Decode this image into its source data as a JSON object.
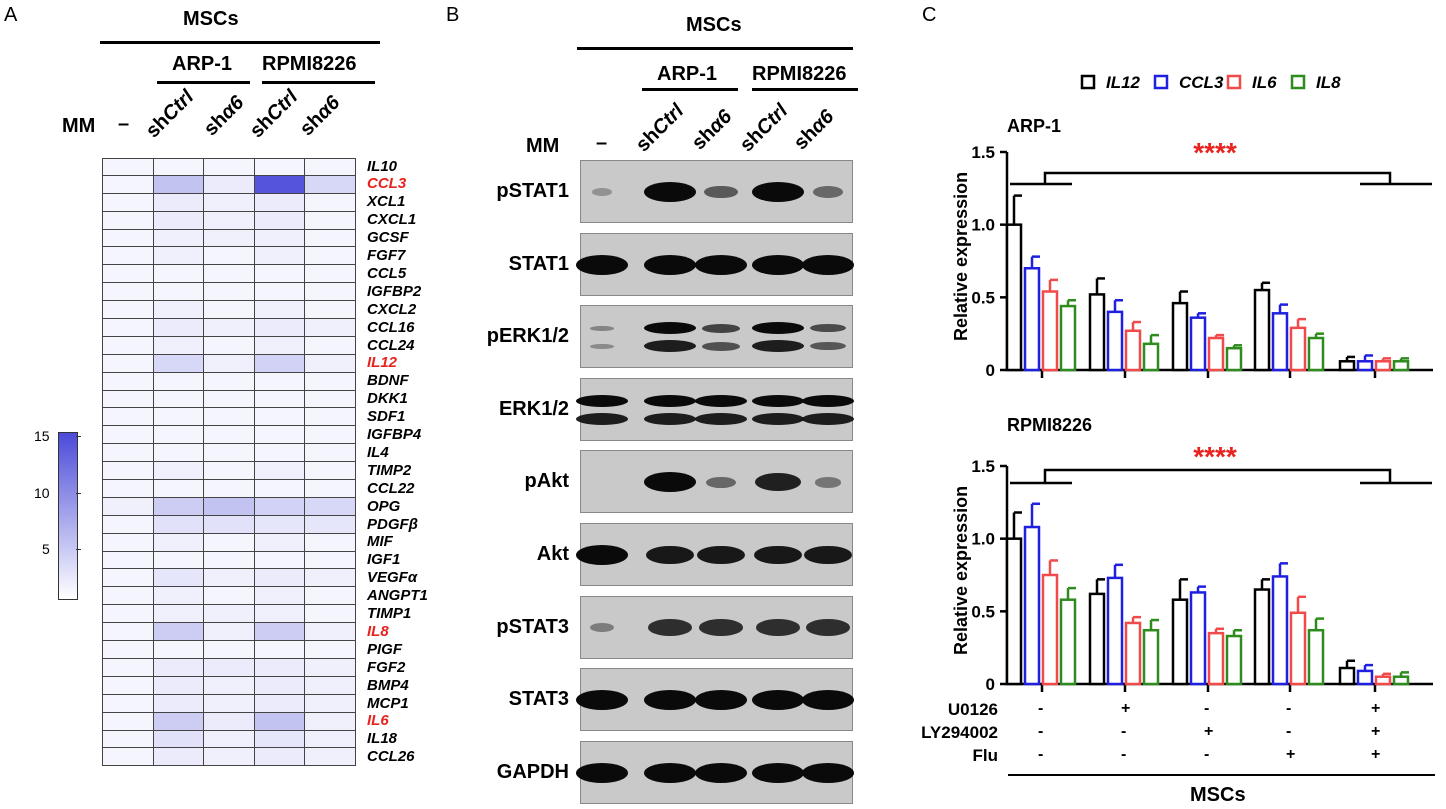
{
  "panelA": {
    "letter": "A",
    "header_msc": "MSCs",
    "header_arp": "ARP-1",
    "header_rpmi": "RPMI8226",
    "mm_label": "MM",
    "dash": "–",
    "col_labels": [
      {
        "prefix": "sh",
        "italic": "Ctrl"
      },
      {
        "prefix": "sh",
        "italic": "α6"
      },
      {
        "prefix": "sh",
        "italic": "Ctrl"
      },
      {
        "prefix": "sh",
        "italic": "α6"
      }
    ],
    "genes": [
      "IL10",
      "CCL3",
      "XCL1",
      "CXCL1",
      "GCSF",
      "FGF7",
      "CCL5",
      "IGFBP2",
      "CXCL2",
      "CCL16",
      "CCL24",
      "IL12",
      "BDNF",
      "DKK1",
      "SDF1",
      "IGFBP4",
      "IL4",
      "TIMP2",
      "CCL22",
      "OPG",
      "PDGFβ",
      "MIF",
      "IGF1",
      "VEGFα",
      "ANGPT1",
      "TIMP1",
      "IL8",
      "PIGF",
      "FGF2",
      "BMP4",
      "MCP1",
      "IL6",
      "IL18",
      "CCL26"
    ],
    "highlight_genes": [
      "CCL3",
      "IL12",
      "IL8",
      "IL6"
    ],
    "highlight_color": "#e8231f",
    "heat_values": [
      [
        1,
        1,
        1,
        1,
        1
      ],
      [
        1,
        6,
        2,
        17,
        4
      ],
      [
        1,
        2,
        1.5,
        2,
        1
      ],
      [
        1,
        2,
        1.5,
        2,
        1
      ],
      [
        1,
        1.5,
        1.5,
        1.5,
        1
      ],
      [
        1,
        1.5,
        1,
        1.5,
        1
      ],
      [
        1,
        1,
        1,
        1,
        1
      ],
      [
        1,
        1,
        1,
        1,
        1
      ],
      [
        1,
        1.5,
        1,
        1.5,
        1
      ],
      [
        1,
        2,
        1.5,
        2,
        1.5
      ],
      [
        1,
        1.5,
        1,
        1.5,
        1
      ],
      [
        1,
        4,
        1.5,
        4.5,
        1.5
      ],
      [
        1,
        1,
        1,
        1,
        1
      ],
      [
        1,
        1,
        1,
        1,
        1
      ],
      [
        1,
        1,
        1,
        1,
        1
      ],
      [
        1,
        1,
        1,
        1,
        1
      ],
      [
        1,
        1,
        1,
        1,
        1
      ],
      [
        1,
        1.5,
        1,
        1.5,
        1
      ],
      [
        1,
        1,
        1,
        1,
        1
      ],
      [
        1.5,
        5,
        6,
        4.5,
        4
      ],
      [
        1,
        3,
        3,
        2.5,
        2.5
      ],
      [
        1,
        1.5,
        1,
        1.5,
        1
      ],
      [
        1,
        1,
        1,
        1,
        1
      ],
      [
        1,
        2.5,
        1.5,
        2,
        1.5
      ],
      [
        1,
        1.5,
        1,
        1.5,
        1
      ],
      [
        1,
        1.5,
        1.5,
        1.5,
        1
      ],
      [
        1,
        5,
        1.5,
        5,
        1.5
      ],
      [
        1,
        1,
        1,
        1,
        1
      ],
      [
        1,
        2,
        2,
        2,
        1.5
      ],
      [
        1,
        2,
        1.5,
        2,
        1.5
      ],
      [
        1,
        2,
        1.5,
        2,
        1.5
      ],
      [
        1,
        5,
        2,
        6,
        1.5
      ],
      [
        1,
        3,
        1.5,
        2.5,
        1.5
      ],
      [
        1,
        2,
        1.5,
        2,
        1.5
      ]
    ],
    "colorbar": {
      "min": 0,
      "max": 18,
      "ticks": [
        15,
        10,
        5
      ],
      "color_low": "#ffffff",
      "color_high": "#4b4bd9"
    }
  },
  "panelB": {
    "letter": "B",
    "header_msc": "MSCs",
    "header_arp": "ARP-1",
    "header_rpmi": "RPMI8226",
    "mm_label": "MM",
    "dash": "–",
    "col_labels": [
      {
        "prefix": "sh",
        "italic": "Ctrl"
      },
      {
        "prefix": "sh",
        "italic": "α6"
      },
      {
        "prefix": "sh",
        "italic": "Ctrl"
      },
      {
        "prefix": "sh",
        "italic": "α6"
      }
    ],
    "blots": [
      {
        "label": "pSTAT1",
        "intensity": [
          0.05,
          1,
          0.45,
          1,
          0.35
        ],
        "double": false
      },
      {
        "label": "STAT1",
        "intensity": [
          1,
          1,
          1,
          1,
          1
        ],
        "double": false
      },
      {
        "label": "pERK1/2",
        "intensity": [
          0.15,
          1,
          0.6,
          1,
          0.55
        ],
        "double": true
      },
      {
        "label": "ERK1/2",
        "intensity": [
          1,
          1,
          1,
          1,
          1
        ],
        "double": true
      },
      {
        "label": "pAkt",
        "intensity": [
          0,
          1,
          0.35,
          0.85,
          0.25
        ],
        "double": false
      },
      {
        "label": "Akt",
        "intensity": [
          1,
          0.9,
          0.9,
          0.9,
          0.9
        ],
        "double": false
      },
      {
        "label": "pSTAT3",
        "intensity": [
          0.2,
          0.75,
          0.75,
          0.75,
          0.75
        ],
        "double": false
      },
      {
        "label": "STAT3",
        "intensity": [
          1,
          1,
          1,
          1,
          1
        ],
        "double": false
      },
      {
        "label": "GAPDH",
        "intensity": [
          1,
          1,
          1,
          1,
          1
        ],
        "double": false
      }
    ]
  },
  "panelC": {
    "letter": "C",
    "legend": [
      "IL12",
      "CCL3",
      "IL6",
      "IL8"
    ],
    "series_colors": [
      "#000000",
      "#1f1fe0",
      "#f04a4a",
      "#2e8b1e"
    ],
    "significance": "****",
    "significance_color": "#e8231f",
    "treatments": [
      {
        "label": "U0126",
        "values": [
          "-",
          "+",
          "-",
          "-",
          "+"
        ]
      },
      {
        "label": "LY294002",
        "values": [
          "-",
          "-",
          "+",
          "-",
          "+"
        ]
      },
      {
        "label": "Flu",
        "values": [
          "-",
          "-",
          "-",
          "+",
          "+"
        ]
      }
    ],
    "footer": "MSCs"
  },
  "chart_data": [
    {
      "type": "bar",
      "title": "ARP-1",
      "ylabel": "Relative expression",
      "ylim": [
        0,
        1.5
      ],
      "yticks": [
        "1.5",
        "1.0",
        "0.5",
        "0"
      ],
      "ytick_values": [
        1.5,
        1.0,
        0.5,
        0
      ],
      "series": [
        {
          "name": "IL12",
          "values": [
            1.0,
            0.52,
            0.46,
            0.55,
            0.06
          ],
          "errors": [
            0.2,
            0.11,
            0.08,
            0.05,
            0.03
          ]
        },
        {
          "name": "CCL3",
          "values": [
            0.7,
            0.4,
            0.36,
            0.39,
            0.06
          ],
          "errors": [
            0.08,
            0.08,
            0.03,
            0.06,
            0.04
          ]
        },
        {
          "name": "IL6",
          "values": [
            0.54,
            0.27,
            0.22,
            0.29,
            0.06
          ],
          "errors": [
            0.08,
            0.06,
            0.02,
            0.06,
            0.02
          ]
        },
        {
          "name": "IL8",
          "values": [
            0.44,
            0.18,
            0.15,
            0.22,
            0.06
          ],
          "errors": [
            0.04,
            0.06,
            0.02,
            0.03,
            0.02
          ]
        }
      ]
    },
    {
      "type": "bar",
      "title": "RPMI8226",
      "ylabel": "Relative expression",
      "ylim": [
        0,
        1.5
      ],
      "yticks": [
        "1.5",
        "1.0",
        "0.5",
        "0"
      ],
      "ytick_values": [
        1.5,
        1.0,
        0.5,
        0
      ],
      "series": [
        {
          "name": "IL12",
          "values": [
            1.0,
            0.62,
            0.58,
            0.65,
            0.11
          ],
          "errors": [
            0.18,
            0.1,
            0.14,
            0.07,
            0.05
          ]
        },
        {
          "name": "CCL3",
          "values": [
            1.08,
            0.73,
            0.63,
            0.74,
            0.09
          ],
          "errors": [
            0.16,
            0.09,
            0.04,
            0.09,
            0.04
          ]
        },
        {
          "name": "IL6",
          "values": [
            0.75,
            0.42,
            0.35,
            0.49,
            0.05
          ],
          "errors": [
            0.1,
            0.04,
            0.03,
            0.11,
            0.02
          ]
        },
        {
          "name": "IL8",
          "values": [
            0.58,
            0.37,
            0.33,
            0.37,
            0.05
          ],
          "errors": [
            0.08,
            0.07,
            0.04,
            0.08,
            0.03
          ]
        }
      ]
    }
  ]
}
